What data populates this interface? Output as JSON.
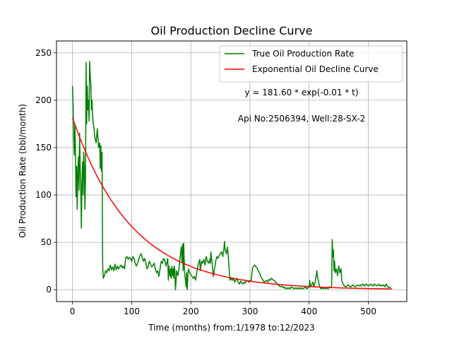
{
  "chart_data": {
    "type": "line",
    "title": "Oil Production Decline Curve",
    "xlabel": "Time (months) from:1/1978 to:12/2023",
    "ylabel": "Oil Production Rate (bbl/month)",
    "xlim": [
      -27,
      565
    ],
    "ylim": [
      -12.5,
      262.5
    ],
    "xticks": [
      0,
      100,
      200,
      300,
      400,
      500
    ],
    "yticks": [
      0,
      50,
      100,
      150,
      200,
      250
    ],
    "grid": true,
    "legend_position": "top-right",
    "annotations": [
      "y = 181.60 * exp(-0.01 * t)",
      "Api No:2506394, Well:28-SX-2"
    ],
    "series": [
      {
        "name": "True Oil Production Rate",
        "color": "#008000",
        "points": [
          [
            0,
            215
          ],
          [
            1,
            195
          ],
          [
            2,
            160
          ],
          [
            3,
            142
          ],
          [
            4,
            175
          ],
          [
            5,
            150
          ],
          [
            6,
            98
          ],
          [
            7,
            130
          ],
          [
            8,
            85
          ],
          [
            9,
            125
          ],
          [
            10,
            140
          ],
          [
            11,
            105
          ],
          [
            12,
            165
          ],
          [
            13,
            130
          ],
          [
            14,
            106
          ],
          [
            15,
            65
          ],
          [
            16,
            110
          ],
          [
            17,
            135
          ],
          [
            18,
            100
          ],
          [
            19,
            145
          ],
          [
            20,
            130
          ],
          [
            21,
            85
          ],
          [
            22,
            120
          ],
          [
            23,
            240
          ],
          [
            24,
            175
          ],
          [
            25,
            215
          ],
          [
            26,
            190
          ],
          [
            27,
            200
          ],
          [
            28,
            178
          ],
          [
            29,
            241
          ],
          [
            30,
            225
          ],
          [
            31,
            218
          ],
          [
            32,
            190
          ],
          [
            33,
            200
          ],
          [
            34,
            185
          ],
          [
            35,
            175
          ],
          [
            36,
            172
          ],
          [
            38,
            160
          ],
          [
            40,
            155
          ],
          [
            42,
            170
          ],
          [
            44,
            150
          ],
          [
            46,
            155
          ],
          [
            47,
            128
          ],
          [
            48,
            152
          ],
          [
            49,
            125
          ],
          [
            50,
            145
          ],
          [
            51,
            25
          ],
          [
            52,
            12
          ],
          [
            54,
            15
          ],
          [
            56,
            20
          ],
          [
            58,
            18
          ],
          [
            60,
            22
          ],
          [
            62,
            20
          ],
          [
            64,
            26
          ],
          [
            66,
            21
          ],
          [
            68,
            24
          ],
          [
            70,
            20
          ],
          [
            72,
            27
          ],
          [
            74,
            21
          ],
          [
            76,
            25
          ],
          [
            78,
            22
          ],
          [
            80,
            24
          ],
          [
            82,
            26
          ],
          [
            84,
            23
          ],
          [
            86,
            25
          ],
          [
            88,
            22
          ],
          [
            90,
            34
          ],
          [
            92,
            35
          ],
          [
            94,
            32
          ],
          [
            96,
            34
          ],
          [
            98,
            33
          ],
          [
            100,
            30
          ],
          [
            102,
            35
          ],
          [
            104,
            33
          ],
          [
            106,
            28
          ],
          [
            108,
            25
          ],
          [
            110,
            28
          ],
          [
            112,
            32
          ],
          [
            114,
            36
          ],
          [
            116,
            38
          ],
          [
            118,
            34
          ],
          [
            120,
            30
          ],
          [
            122,
            33
          ],
          [
            124,
            28
          ],
          [
            126,
            22
          ],
          [
            128,
            25
          ],
          [
            130,
            30
          ],
          [
            132,
            27
          ],
          [
            134,
            24
          ],
          [
            136,
            26
          ],
          [
            138,
            28
          ],
          [
            140,
            22
          ],
          [
            142,
            18
          ],
          [
            144,
            20
          ],
          [
            146,
            14
          ],
          [
            148,
            22
          ],
          [
            150,
            30
          ],
          [
            152,
            28
          ],
          [
            154,
            33
          ],
          [
            156,
            31
          ],
          [
            158,
            25
          ],
          [
            160,
            30
          ],
          [
            161,
            33
          ],
          [
            162,
            10
          ],
          [
            163,
            25
          ],
          [
            164,
            20
          ],
          [
            165,
            14
          ],
          [
            166,
            22
          ],
          [
            167,
            12
          ],
          [
            168,
            25
          ],
          [
            169,
            15
          ],
          [
            170,
            22
          ],
          [
            171,
            12
          ],
          [
            172,
            25
          ],
          [
            173,
            20
          ],
          [
            174,
            0
          ],
          [
            175,
            8
          ],
          [
            176,
            20
          ],
          [
            178,
            15
          ],
          [
            180,
            22
          ],
          [
            182,
            35
          ],
          [
            184,
            45
          ],
          [
            185,
            30
          ],
          [
            186,
            48
          ],
          [
            187,
            20
          ],
          [
            188,
            49
          ],
          [
            189,
            25
          ],
          [
            190,
            15
          ],
          [
            191,
            10
          ],
          [
            192,
            3
          ],
          [
            193,
            18
          ],
          [
            194,
            0
          ],
          [
            195,
            15
          ],
          [
            196,
            22
          ],
          [
            198,
            18
          ],
          [
            200,
            16
          ],
          [
            202,
            14
          ],
          [
            204,
            12
          ],
          [
            206,
            14
          ],
          [
            208,
            10
          ],
          [
            210,
            18
          ],
          [
            212,
            25
          ],
          [
            214,
            30
          ],
          [
            215,
            32
          ],
          [
            216,
            20
          ],
          [
            218,
            30
          ],
          [
            220,
            28
          ],
          [
            222,
            32
          ],
          [
            224,
            26
          ],
          [
            226,
            35
          ],
          [
            228,
            30
          ],
          [
            230,
            28
          ],
          [
            232,
            32
          ],
          [
            233,
            28
          ],
          [
            234,
            40
          ],
          [
            235,
            33
          ],
          [
            236,
            28
          ],
          [
            238,
            14
          ],
          [
            240,
            22
          ],
          [
            242,
            30
          ],
          [
            244,
            35
          ],
          [
            246,
            33
          ],
          [
            248,
            36
          ],
          [
            250,
            38
          ],
          [
            252,
            40
          ],
          [
            254,
            35
          ],
          [
            256,
            44
          ],
          [
            257,
            51
          ],
          [
            258,
            42
          ],
          [
            260,
            38
          ],
          [
            262,
            45
          ],
          [
            264,
            30
          ],
          [
            266,
            10
          ],
          [
            268,
            12
          ],
          [
            270,
            10
          ],
          [
            272,
            12
          ],
          [
            274,
            8
          ],
          [
            276,
            10
          ],
          [
            278,
            12
          ],
          [
            280,
            8
          ],
          [
            282,
            6
          ],
          [
            284,
            9
          ],
          [
            286,
            7
          ],
          [
            288,
            6
          ],
          [
            290,
            8
          ],
          [
            292,
            7
          ],
          [
            294,
            10
          ],
          [
            296,
            9
          ],
          [
            298,
            8
          ],
          [
            300,
            10
          ],
          [
            302,
            9
          ],
          [
            304,
            22
          ],
          [
            306,
            25
          ],
          [
            308,
            26
          ],
          [
            310,
            24
          ],
          [
            312,
            23
          ],
          [
            314,
            20
          ],
          [
            316,
            18
          ],
          [
            318,
            14
          ],
          [
            320,
            12
          ],
          [
            322,
            10
          ],
          [
            324,
            8
          ],
          [
            326,
            9
          ],
          [
            328,
            10
          ],
          [
            330,
            8
          ],
          [
            332,
            11
          ],
          [
            334,
            10
          ],
          [
            336,
            12
          ],
          [
            338,
            11
          ],
          [
            340,
            10
          ],
          [
            342,
            9
          ],
          [
            344,
            8
          ],
          [
            346,
            6
          ],
          [
            348,
            5
          ],
          [
            350,
            4
          ],
          [
            352,
            3
          ],
          [
            354,
            4
          ],
          [
            356,
            2
          ],
          [
            358,
            3
          ],
          [
            360,
            1
          ],
          [
            362,
            2
          ],
          [
            364,
            1
          ],
          [
            366,
            2
          ],
          [
            368,
            1
          ],
          [
            370,
            3
          ],
          [
            372,
            2
          ],
          [
            374,
            1
          ],
          [
            376,
            2
          ],
          [
            378,
            1
          ],
          [
            380,
            2
          ],
          [
            382,
            1
          ],
          [
            384,
            2
          ],
          [
            386,
            1
          ],
          [
            388,
            2
          ],
          [
            390,
            1
          ],
          [
            392,
            2
          ],
          [
            394,
            3
          ],
          [
            396,
            1
          ],
          [
            398,
            2
          ],
          [
            400,
            3
          ],
          [
            401,
            10
          ],
          [
            402,
            3
          ],
          [
            404,
            5
          ],
          [
            406,
            8
          ],
          [
            408,
            3
          ],
          [
            410,
            8
          ],
          [
            412,
            15
          ],
          [
            413,
            20
          ],
          [
            414,
            14
          ],
          [
            416,
            8
          ],
          [
            418,
            3
          ],
          [
            420,
            1
          ],
          [
            422,
            2
          ],
          [
            424,
            1
          ],
          [
            426,
            2
          ],
          [
            428,
            1
          ],
          [
            430,
            2
          ],
          [
            432,
            1
          ],
          [
            434,
            3
          ],
          [
            436,
            2
          ],
          [
            438,
            4
          ],
          [
            439,
            53
          ],
          [
            440,
            35
          ],
          [
            441,
            42
          ],
          [
            442,
            20
          ],
          [
            443,
            30
          ],
          [
            444,
            18
          ],
          [
            446,
            22
          ],
          [
            448,
            15
          ],
          [
            450,
            25
          ],
          [
            452,
            18
          ],
          [
            454,
            22
          ],
          [
            455,
            10
          ],
          [
            456,
            8
          ],
          [
            458,
            5
          ],
          [
            460,
            4
          ],
          [
            462,
            3
          ],
          [
            464,
            4
          ],
          [
            466,
            5
          ],
          [
            468,
            4
          ],
          [
            470,
            3
          ],
          [
            472,
            4
          ],
          [
            474,
            5
          ],
          [
            476,
            4
          ],
          [
            478,
            3
          ],
          [
            480,
            4
          ],
          [
            482,
            5
          ],
          [
            484,
            4
          ],
          [
            486,
            5
          ],
          [
            488,
            4
          ],
          [
            490,
            6
          ],
          [
            492,
            5
          ],
          [
            494,
            4
          ],
          [
            496,
            6
          ],
          [
            498,
            5
          ],
          [
            500,
            4
          ],
          [
            502,
            5
          ],
          [
            504,
            6
          ],
          [
            506,
            5
          ],
          [
            508,
            4
          ],
          [
            510,
            6
          ],
          [
            512,
            5
          ],
          [
            514,
            4
          ],
          [
            516,
            5
          ],
          [
            518,
            6
          ],
          [
            520,
            4
          ],
          [
            522,
            5
          ],
          [
            524,
            4
          ],
          [
            526,
            5
          ],
          [
            528,
            3
          ],
          [
            530,
            6
          ],
          [
            532,
            4
          ],
          [
            534,
            2
          ],
          [
            536,
            3
          ],
          [
            538,
            2
          ]
        ]
      },
      {
        "name": "Exponential Oil Decline Curve",
        "color": "#ff0000",
        "model": {
          "a": 181.6,
          "k": 0.01,
          "t_start": 0,
          "t_end": 540,
          "step": 5
        }
      }
    ]
  }
}
